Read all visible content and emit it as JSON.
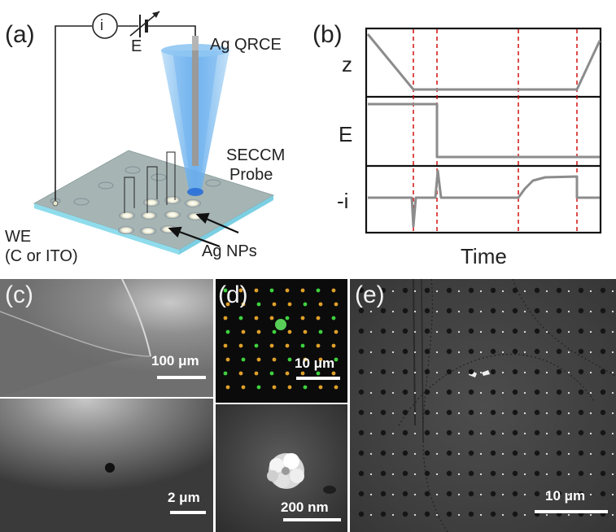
{
  "panel_a": {
    "label": "(a)",
    "current_symbol": "i",
    "potential_symbol": "E",
    "reference_electrode": "Ag QRCE",
    "probe_line1": "SECCM",
    "probe_line2": "Probe",
    "we_line1": "WE",
    "we_line2": "(C or ITO)",
    "np_label": "Ag NPs"
  },
  "panel_b": {
    "label": "(b)",
    "trace_z": "z",
    "trace_e": "E",
    "trace_i": "-i",
    "x_axis": "Time"
  },
  "panel_c": {
    "label": "(c)",
    "scale_top": "100 μm",
    "scale_bottom": "2 μm"
  },
  "panel_d": {
    "label": "(d)",
    "scale_top": "10 μm",
    "scale_bottom": "200 nm"
  },
  "panel_e": {
    "label": "(e)",
    "scale": "10 μm"
  },
  "colors": {
    "trace": "#8c8c8c",
    "marker": "#cc0000",
    "probe": "#3a7fe0",
    "substrate": "#a9b9b9",
    "substrate_edge": "#9fe3f0"
  }
}
